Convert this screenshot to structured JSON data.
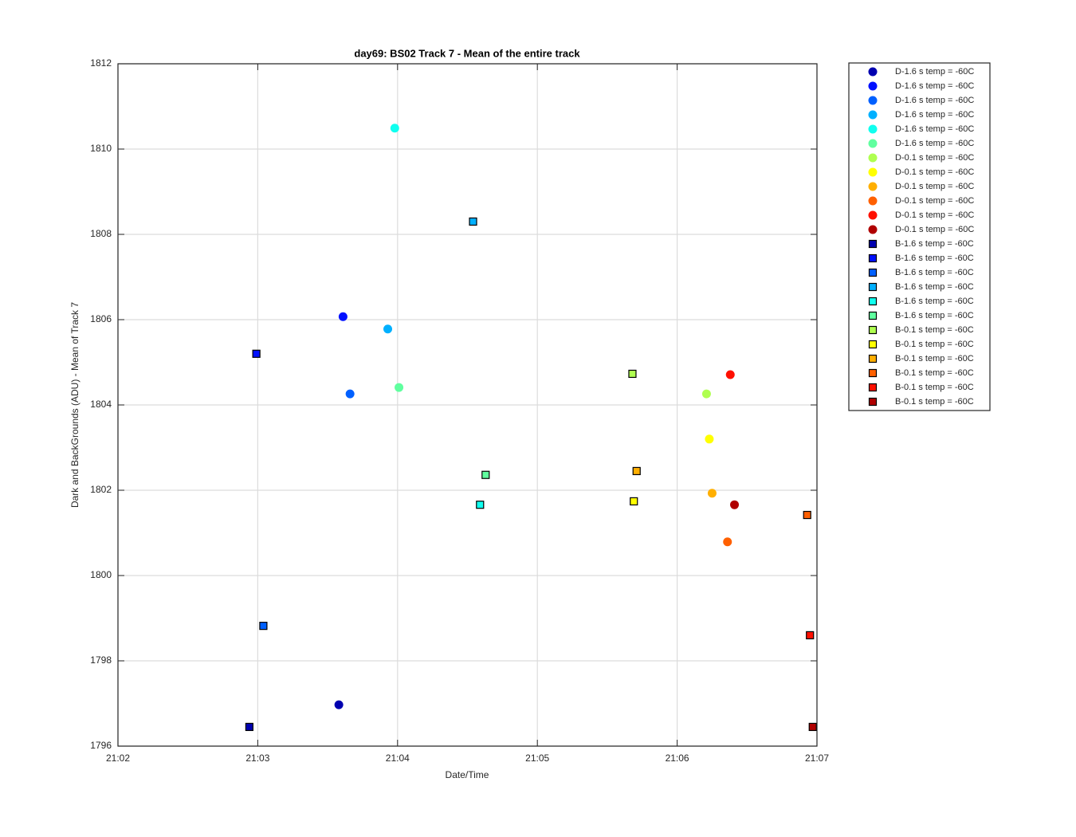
{
  "chart_data": {
    "type": "scatter",
    "title": "day69: BS02  Track 7 - Mean of the entire track",
    "xlabel": "Date/Time",
    "ylabel": "Dark and BackGrounds (ADU) - Mean of Track 7",
    "xlim": [
      1262,
      1267
    ],
    "xticks": [
      {
        "value": 1262,
        "label": "21:02"
      },
      {
        "value": 1263,
        "label": "21:03"
      },
      {
        "value": 1264,
        "label": "21:04"
      },
      {
        "value": 1265,
        "label": "21:05"
      },
      {
        "value": 1266,
        "label": "21:06"
      },
      {
        "value": 1267,
        "label": "21:07"
      }
    ],
    "ylim": [
      1796,
      1812
    ],
    "yticks": [
      1796,
      1798,
      1800,
      1802,
      1804,
      1806,
      1808,
      1810,
      1812
    ],
    "grid": true,
    "legend": "outside-right",
    "series": [
      {
        "name": "D-1.6 s temp = -60C",
        "color": "#0000b0",
        "marker": "circle",
        "x": [
          1263.58
        ],
        "values": [
          1796.97
        ]
      },
      {
        "name": "D-1.6 s temp = -60C",
        "color": "#0010ff",
        "marker": "circle",
        "x": [
          1263.61
        ],
        "values": [
          1806.07
        ]
      },
      {
        "name": "D-1.6 s temp = -60C",
        "color": "#0060ff",
        "marker": "circle",
        "x": [
          1263.66
        ],
        "values": [
          1804.26
        ]
      },
      {
        "name": "D-1.6 s temp = -60C",
        "color": "#00b0ff",
        "marker": "circle",
        "x": [
          1263.93
        ],
        "values": [
          1805.78
        ]
      },
      {
        "name": "D-1.6 s temp = -60C",
        "color": "#10ffef",
        "marker": "circle",
        "x": [
          1263.98
        ],
        "values": [
          1810.49
        ]
      },
      {
        "name": "D-1.6 s temp = -60C",
        "color": "#60ff9f",
        "marker": "circle",
        "x": [
          1264.01
        ],
        "values": [
          1804.41
        ]
      },
      {
        "name": "D-0.1 s temp = -60C",
        "color": "#afff50",
        "marker": "circle",
        "x": [
          1266.21
        ],
        "values": [
          1804.26
        ]
      },
      {
        "name": "D-0.1 s temp = -60C",
        "color": "#ffff00",
        "marker": "circle",
        "x": [
          1266.23
        ],
        "values": [
          1803.2
        ]
      },
      {
        "name": "D-0.1 s temp = -60C",
        "color": "#ffaf00",
        "marker": "circle",
        "x": [
          1266.25
        ],
        "values": [
          1801.93
        ]
      },
      {
        "name": "D-0.1 s temp = -60C",
        "color": "#ff6000",
        "marker": "circle",
        "x": [
          1266.36
        ],
        "values": [
          1800.79
        ]
      },
      {
        "name": "D-0.1 s temp = -60C",
        "color": "#ff1000",
        "marker": "circle",
        "x": [
          1266.38
        ],
        "values": [
          1804.71
        ]
      },
      {
        "name": "D-0.1 s temp = -60C",
        "color": "#b00000",
        "marker": "circle",
        "x": [
          1266.41
        ],
        "values": [
          1801.66
        ]
      },
      {
        "name": "B-1.6 s temp = -60C",
        "color": "#0000b0",
        "marker": "square",
        "x": [
          1262.94
        ],
        "values": [
          1796.45
        ]
      },
      {
        "name": "B-1.6 s temp = -60C",
        "color": "#0010ff",
        "marker": "square",
        "x": [
          1262.99
        ],
        "values": [
          1805.2
        ]
      },
      {
        "name": "B-1.6 s temp = -60C",
        "color": "#0060ff",
        "marker": "square",
        "x": [
          1263.04
        ],
        "values": [
          1798.82
        ]
      },
      {
        "name": "B-1.6 s temp = -60C",
        "color": "#00b0ff",
        "marker": "square",
        "x": [
          1264.54
        ],
        "values": [
          1808.3
        ]
      },
      {
        "name": "B-1.6 s temp = -60C",
        "color": "#10ffef",
        "marker": "square",
        "x": [
          1264.59
        ],
        "values": [
          1801.66
        ]
      },
      {
        "name": "B-1.6 s temp = -60C",
        "color": "#60ff9f",
        "marker": "square",
        "x": [
          1264.63
        ],
        "values": [
          1802.36
        ]
      },
      {
        "name": "B-0.1 s temp = -60C",
        "color": "#afff50",
        "marker": "square",
        "x": [
          1265.68
        ],
        "values": [
          1804.73
        ]
      },
      {
        "name": "B-0.1 s temp = -60C",
        "color": "#ffff00",
        "marker": "square",
        "x": [
          1265.69
        ],
        "values": [
          1801.74
        ]
      },
      {
        "name": "B-0.1 s temp = -60C",
        "color": "#ffaf00",
        "marker": "square",
        "x": [
          1265.71
        ],
        "values": [
          1802.45
        ]
      },
      {
        "name": "B-0.1 s temp = -60C",
        "color": "#ff6000",
        "marker": "square",
        "x": [
          1266.93
        ],
        "values": [
          1801.42
        ]
      },
      {
        "name": "B-0.1 s temp = -60C",
        "color": "#ff1000",
        "marker": "square",
        "x": [
          1266.95
        ],
        "values": [
          1798.6
        ]
      },
      {
        "name": "B-0.1 s temp = -60C",
        "color": "#b00000",
        "marker": "square",
        "x": [
          1266.97
        ],
        "values": [
          1796.45
        ]
      }
    ]
  }
}
